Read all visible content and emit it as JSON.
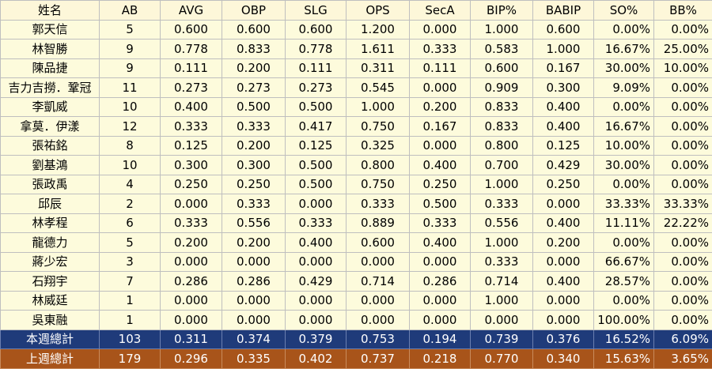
{
  "table": {
    "headers": [
      "姓名",
      "AB",
      "AVG",
      "OBP",
      "SLG",
      "OPS",
      "SecA",
      "BIP%",
      "BABIP",
      "SO%",
      "BB%"
    ],
    "rows": [
      [
        "郭天信",
        "5",
        "0.600",
        "0.600",
        "0.600",
        "1.200",
        "0.000",
        "1.000",
        "0.600",
        "0.00%",
        "0.00%"
      ],
      [
        "林智勝",
        "9",
        "0.778",
        "0.833",
        "0.778",
        "1.611",
        "0.333",
        "0.583",
        "1.000",
        "16.67%",
        "25.00%"
      ],
      [
        "陳品捷",
        "9",
        "0.111",
        "0.200",
        "0.111",
        "0.311",
        "0.111",
        "0.600",
        "0.167",
        "30.00%",
        "10.00%"
      ],
      [
        "吉力吉撈．鞏冠",
        "11",
        "0.273",
        "0.273",
        "0.273",
        "0.545",
        "0.000",
        "0.909",
        "0.300",
        "9.09%",
        "0.00%"
      ],
      [
        "李凱威",
        "10",
        "0.400",
        "0.500",
        "0.500",
        "1.000",
        "0.200",
        "0.833",
        "0.400",
        "0.00%",
        "0.00%"
      ],
      [
        "拿莫．伊漾",
        "12",
        "0.333",
        "0.333",
        "0.417",
        "0.750",
        "0.167",
        "0.833",
        "0.400",
        "16.67%",
        "0.00%"
      ],
      [
        "張祐銘",
        "8",
        "0.125",
        "0.200",
        "0.125",
        "0.325",
        "0.000",
        "0.800",
        "0.125",
        "10.00%",
        "0.00%"
      ],
      [
        "劉基鴻",
        "10",
        "0.300",
        "0.300",
        "0.500",
        "0.800",
        "0.400",
        "0.700",
        "0.429",
        "30.00%",
        "0.00%"
      ],
      [
        "張政禹",
        "4",
        "0.250",
        "0.250",
        "0.500",
        "0.750",
        "0.250",
        "1.000",
        "0.250",
        "0.00%",
        "0.00%"
      ],
      [
        "邱辰",
        "2",
        "0.000",
        "0.333",
        "0.000",
        "0.333",
        "0.500",
        "0.333",
        "0.000",
        "33.33%",
        "33.33%"
      ],
      [
        "林孝程",
        "6",
        "0.333",
        "0.556",
        "0.333",
        "0.889",
        "0.333",
        "0.556",
        "0.400",
        "11.11%",
        "22.22%"
      ],
      [
        "龍德力",
        "5",
        "0.200",
        "0.200",
        "0.400",
        "0.600",
        "0.400",
        "1.000",
        "0.200",
        "0.00%",
        "0.00%"
      ],
      [
        "蔣少宏",
        "3",
        "0.000",
        "0.000",
        "0.000",
        "0.000",
        "0.000",
        "0.333",
        "0.000",
        "66.67%",
        "0.00%"
      ],
      [
        "石翔宇",
        "7",
        "0.286",
        "0.286",
        "0.429",
        "0.714",
        "0.286",
        "0.714",
        "0.400",
        "28.57%",
        "0.00%"
      ],
      [
        "林威廷",
        "1",
        "0.000",
        "0.000",
        "0.000",
        "0.000",
        "0.000",
        "1.000",
        "0.000",
        "0.00%",
        "0.00%"
      ],
      [
        "吳東融",
        "1",
        "0.000",
        "0.000",
        "0.000",
        "0.000",
        "0.000",
        "0.000",
        "0.000",
        "100.00%",
        "0.00%"
      ]
    ],
    "totals": [
      {
        "kind": "this-week",
        "cells": [
          "本週總計",
          "103",
          "0.311",
          "0.374",
          "0.379",
          "0.753",
          "0.194",
          "0.739",
          "0.376",
          "16.52%",
          "6.09%"
        ]
      },
      {
        "kind": "last-week",
        "cells": [
          "上週總計",
          "179",
          "0.296",
          "0.335",
          "0.402",
          "0.737",
          "0.218",
          "0.770",
          "0.340",
          "15.63%",
          "3.65%"
        ]
      }
    ]
  },
  "colors": {
    "header_bg": "#fdf7d9",
    "row_bg": "#fdfbdc",
    "this_week_bg": "#1f3b7a",
    "last_week_bg": "#a8541a",
    "total_text": "#ffffff"
  }
}
